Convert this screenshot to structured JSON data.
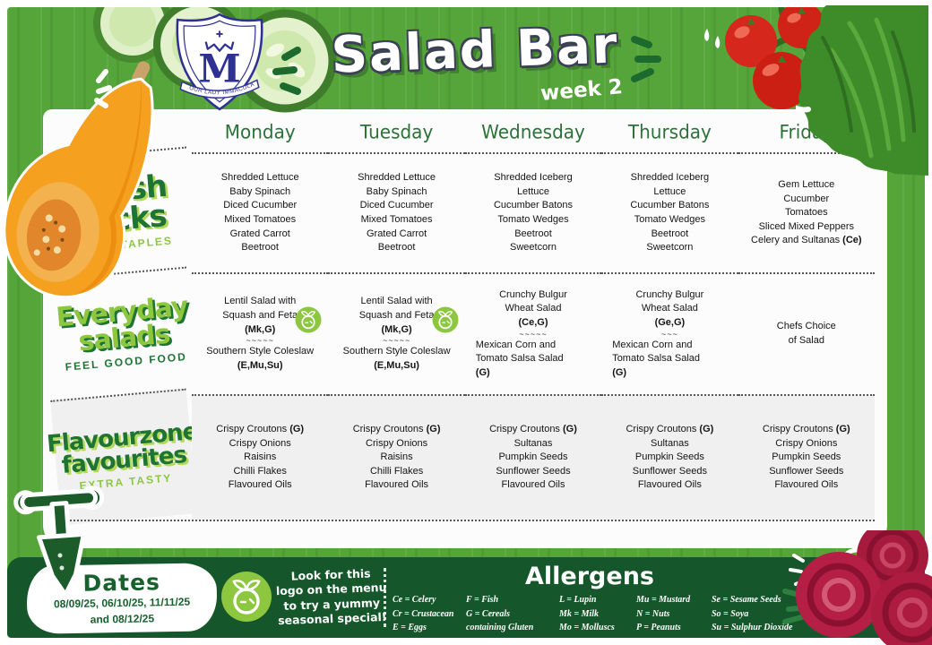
{
  "poster": {
    "title": "Salad Bar",
    "week": "week 2",
    "crest_text": "OUR LADY IMMACULATE"
  },
  "days": [
    "Monday",
    "Tuesday",
    "Wednesday",
    "Thursday",
    "Friday"
  ],
  "sections": [
    {
      "title_lines": [
        "Fresh",
        "picks"
      ],
      "tagline": "THE STAPLES",
      "style": "dark",
      "shaded": false,
      "cells": [
        {
          "lines": [
            "Shredded Lettuce",
            "Baby Spinach",
            "Diced Cucumber",
            "Mixed Tomatoes",
            "Grated Carrot",
            "Beetroot"
          ]
        },
        {
          "lines": [
            "Shredded Lettuce",
            "Baby Spinach",
            "Diced Cucumber",
            "Mixed Tomatoes",
            "Grated Carrot",
            "Beetroot"
          ]
        },
        {
          "lines": [
            "Shredded Iceberg",
            "Lettuce",
            "Cucumber Batons",
            "Tomato Wedges",
            "Beetroot",
            "Sweetcorn"
          ]
        },
        {
          "lines": [
            "Shredded Iceberg",
            "Lettuce",
            "Cucumber Batons",
            "Tomato Wedges",
            "Beetroot",
            "Sweetcorn"
          ]
        },
        {
          "lines": [
            "Gem Lettuce",
            "Cucumber",
            "Tomatoes",
            "Sliced Mixed Peppers",
            "Celery and Sultanas **(Ce)**"
          ]
        }
      ]
    },
    {
      "title_lines": [
        "Everyday",
        "salads"
      ],
      "tagline": "FEEL GOOD FOOD",
      "style": "light",
      "shaded": false,
      "cells": [
        {
          "logo": true,
          "lines": [
            "Lentil Salad with",
            "Squash and Feta",
            "**(Mk,G)**",
            {
              "t": "~~~~~",
              "sep": true
            },
            "Southern Style Coleslaw",
            "**(E,Mu,Su)**"
          ]
        },
        {
          "logo": true,
          "lines": [
            "Lentil Salad with",
            "Squash and Feta",
            "**(Mk,G)**",
            {
              "t": "~~~~~",
              "sep": true
            },
            "Southern Style Coleslaw",
            "**(E,Mu,Su)**"
          ]
        },
        {
          "lines": [
            "Crunchy Bulgur",
            "Wheat Salad",
            "**(Ce,G)**",
            {
              "t": "~~~~~",
              "sep": true
            },
            {
              "t": "Mexican Corn and",
              "align": "left"
            },
            {
              "t": "Tomato Salsa Salad",
              "align": "left"
            },
            {
              "t": "**(G)**",
              "align": "left"
            }
          ]
        },
        {
          "lines": [
            "Crunchy Bulgur",
            "Wheat Salad",
            "**(Ge,G)**",
            {
              "t": "~~~",
              "sep": true
            },
            {
              "t": "Mexican Corn and",
              "align": "left"
            },
            {
              "t": "Tomato Salsa Salad",
              "align": "left"
            },
            {
              "t": "**(G)**",
              "align": "left"
            }
          ]
        },
        {
          "lines": [
            "Chefs Choice",
            "of Salad"
          ]
        }
      ]
    },
    {
      "title_lines": [
        "Flavourzone",
        "favourites"
      ],
      "tagline": "EXTRA TASTY",
      "style": "dark",
      "shaded": true,
      "cells": [
        {
          "lines": [
            "Crispy Croutons **(G)**",
            "Crispy Onions",
            "Raisins",
            "Chilli Flakes",
            "Flavoured Oils"
          ]
        },
        {
          "lines": [
            "Crispy Croutons **(G)**",
            "Crispy Onions",
            "Raisins",
            "Chilli Flakes",
            "Flavoured Oils"
          ]
        },
        {
          "lines": [
            "Crispy Croutons **(G)**",
            "Sultanas",
            "Pumpkin Seeds",
            "Sunflower Seeds",
            "Flavoured Oils"
          ]
        },
        {
          "lines": [
            "Crispy Croutons **(G)**",
            "Sultanas",
            "Pumpkin Seeds",
            "Sunflower Seeds",
            "Flavoured Oils"
          ]
        },
        {
          "lines": [
            "Crispy Croutons **(G)**",
            "Crispy Onions",
            "Pumpkin Seeds",
            "Sunflower Seeds",
            "Flavoured Oils"
          ]
        }
      ]
    }
  ],
  "footer": {
    "dates": {
      "title": "Dates",
      "lines": [
        "08/09/25, 06/10/25, 11/11/25",
        "and 08/12/25"
      ]
    },
    "seasonal_note_lines": [
      "Look for this",
      "logo on the menu",
      "to try a yummy",
      "seasonal special!"
    ],
    "allergens": {
      "title": "Allergens",
      "columns": [
        [
          "Ce = Celery",
          "Cr = Crustacean",
          "E = Eggs"
        ],
        [
          "F = Fish",
          "G = Cereals",
          "containing Gluten"
        ],
        [
          "L = Lupin",
          "Mk = Milk",
          "Mo = Molluscs"
        ],
        [
          "Mu = Mustard",
          "N = Nuts",
          "P = Peanuts"
        ],
        [
          "Se = Sesame Seeds",
          "So = Soya",
          "Su = Sulphur Dioxide"
        ]
      ]
    }
  },
  "colors": {
    "background_green": "#55a53a",
    "dark_green": "#15572a",
    "leaf_green": "#1d7433",
    "light_green": "#8dc63f",
    "crest_navy": "#2e3192",
    "tomato_red": "#d6271c",
    "squash_orange": "#f6a01f",
    "beetroot_red": "#b51e45"
  }
}
